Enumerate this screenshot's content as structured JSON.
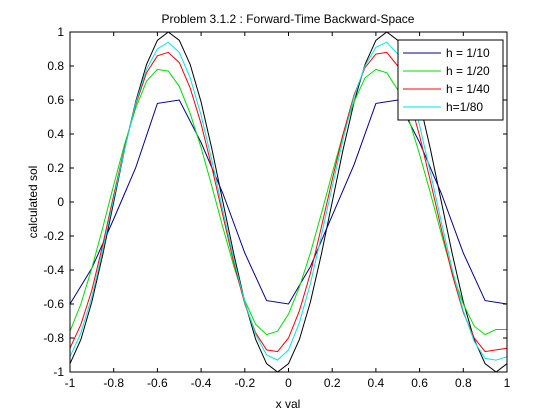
{
  "chart_data": {
    "type": "line",
    "title": "Problem 3.1.2 : Forward-Time Backward-Space",
    "xlabel": "x val",
    "ylabel": "calculated sol",
    "xlim": [
      -1,
      1
    ],
    "ylim": [
      -1,
      1
    ],
    "grid": false,
    "legend_position": "top-right",
    "x_ticks": [
      "-1",
      "-0.8",
      "-0.6",
      "-0.4",
      "-0.2",
      "0",
      "0.2",
      "0.4",
      "0.6",
      "0.8",
      "1"
    ],
    "y_ticks": [
      "-1",
      "-0.8",
      "-0.6",
      "-0.4",
      "-0.2",
      "0",
      "0.2",
      "0.4",
      "0.6",
      "0.8",
      "1"
    ],
    "series": [
      {
        "color": "#000000",
        "x": [
          -1,
          -0.95,
          -0.9,
          -0.85,
          -0.8,
          -0.75,
          -0.7,
          -0.65,
          -0.6,
          -0.55,
          -0.5,
          -0.45,
          -0.4,
          -0.35,
          -0.3,
          -0.25,
          -0.2,
          -0.15,
          -0.1,
          -0.05,
          0,
          0.05,
          0.1,
          0.15,
          0.2,
          0.25,
          0.3,
          0.35,
          0.4,
          0.45,
          0.5,
          0.55,
          0.6,
          0.65,
          0.7,
          0.75,
          0.8,
          0.85,
          0.9,
          0.95,
          1
        ],
        "y": [
          -0.951,
          -0.809,
          -0.588,
          -0.309,
          0,
          0.309,
          0.588,
          0.809,
          0.951,
          1,
          0.951,
          0.809,
          0.588,
          0.309,
          0,
          -0.309,
          -0.588,
          -0.809,
          -0.951,
          -1,
          -0.951,
          -0.809,
          -0.588,
          -0.309,
          0,
          0.309,
          0.588,
          0.809,
          0.951,
          1,
          0.951,
          0.809,
          0.588,
          0.309,
          0,
          -0.309,
          -0.588,
          -0.809,
          -0.951,
          -1,
          -0.951
        ]
      },
      {
        "name": "h = 1/10",
        "color": "#00008b",
        "x": [
          -1,
          -0.9,
          -0.8,
          -0.7,
          -0.6,
          -0.5,
          -0.4,
          -0.3,
          -0.2,
          -0.1,
          0,
          0.1,
          0.2,
          0.3,
          0.4,
          0.5,
          0.6,
          0.7,
          0.8,
          0.9,
          1
        ],
        "y": [
          -0.6,
          -0.39,
          -0.1,
          0.2,
          0.58,
          0.6,
          0.35,
          0.05,
          -0.3,
          -0.58,
          -0.6,
          -0.38,
          -0.08,
          0.22,
          0.58,
          0.6,
          0.35,
          0.05,
          -0.3,
          -0.58,
          -0.6
        ]
      },
      {
        "name": "h = 1/20",
        "color": "#00dd00",
        "x": [
          -1,
          -0.95,
          -0.9,
          -0.85,
          -0.8,
          -0.75,
          -0.7,
          -0.65,
          -0.6,
          -0.55,
          -0.5,
          -0.45,
          -0.4,
          -0.35,
          -0.3,
          -0.25,
          -0.2,
          -0.15,
          -0.1,
          -0.05,
          0,
          0.05,
          0.1,
          0.15,
          0.2,
          0.25,
          0.3,
          0.35,
          0.4,
          0.45,
          0.5,
          0.55,
          0.6,
          0.65,
          0.7,
          0.75,
          0.8,
          0.85,
          0.9,
          0.95,
          1
        ],
        "y": [
          -0.76,
          -0.6,
          -0.39,
          -0.15,
          0.1,
          0.34,
          0.55,
          0.71,
          0.78,
          0.77,
          0.68,
          0.52,
          0.32,
          0.09,
          -0.15,
          -0.38,
          -0.58,
          -0.72,
          -0.78,
          -0.76,
          -0.66,
          -0.5,
          -0.3,
          -0.07,
          0.17,
          0.4,
          0.59,
          0.73,
          0.78,
          0.76,
          0.66,
          0.49,
          0.28,
          0.05,
          -0.19,
          -0.42,
          -0.6,
          -0.73,
          -0.78,
          -0.75,
          -0.75
        ]
      },
      {
        "name": "h = 1/40",
        "color": "#ff0000",
        "x": [
          -1,
          -0.95,
          -0.9,
          -0.85,
          -0.8,
          -0.75,
          -0.7,
          -0.65,
          -0.6,
          -0.55,
          -0.5,
          -0.45,
          -0.4,
          -0.35,
          -0.3,
          -0.25,
          -0.2,
          -0.15,
          -0.1,
          -0.05,
          0,
          0.05,
          0.1,
          0.15,
          0.2,
          0.25,
          0.3,
          0.35,
          0.4,
          0.45,
          0.5,
          0.55,
          0.6,
          0.65,
          0.7,
          0.75,
          0.8,
          0.85,
          0.9,
          0.95,
          1
        ],
        "y": [
          -0.86,
          -0.72,
          -0.52,
          -0.25,
          0.04,
          0.32,
          0.57,
          0.76,
          0.86,
          0.88,
          0.82,
          0.67,
          0.46,
          0.2,
          -0.08,
          -0.36,
          -0.6,
          -0.77,
          -0.87,
          -0.88,
          -0.8,
          -0.64,
          -0.42,
          -0.15,
          0.13,
          0.4,
          0.63,
          0.79,
          0.87,
          0.88,
          0.8,
          0.62,
          0.39,
          0.12,
          -0.16,
          -0.43,
          -0.65,
          -0.8,
          -0.88,
          -0.87,
          -0.86
        ]
      },
      {
        "name": "h=1/80",
        "color": "#00e5ee",
        "x": [
          -1,
          -0.95,
          -0.9,
          -0.85,
          -0.8,
          -0.75,
          -0.7,
          -0.65,
          -0.6,
          -0.55,
          -0.5,
          -0.45,
          -0.4,
          -0.35,
          -0.3,
          -0.25,
          -0.2,
          -0.15,
          -0.1,
          -0.05,
          0,
          0.05,
          0.1,
          0.15,
          0.2,
          0.25,
          0.3,
          0.35,
          0.4,
          0.45,
          0.5,
          0.55,
          0.6,
          0.65,
          0.7,
          0.75,
          0.8,
          0.85,
          0.9,
          0.95,
          1
        ],
        "y": [
          -0.91,
          -0.77,
          -0.56,
          -0.28,
          0.02,
          0.31,
          0.58,
          0.78,
          0.9,
          0.94,
          0.88,
          0.73,
          0.51,
          0.24,
          -0.05,
          -0.34,
          -0.59,
          -0.78,
          -0.9,
          -0.93,
          -0.87,
          -0.71,
          -0.48,
          -0.2,
          0.09,
          0.37,
          0.62,
          0.8,
          0.91,
          0.94,
          0.87,
          0.69,
          0.45,
          0.17,
          -0.12,
          -0.4,
          -0.64,
          -0.82,
          -0.92,
          -0.93,
          -0.91
        ]
      }
    ]
  }
}
